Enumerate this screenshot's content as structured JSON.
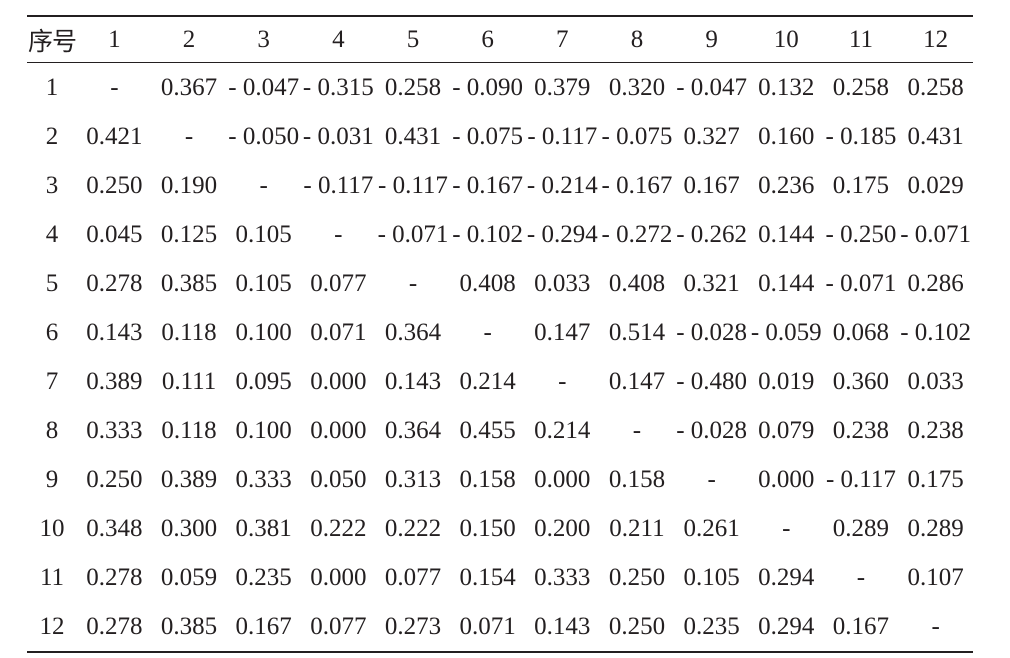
{
  "table": {
    "headers": [
      "序号",
      "1",
      "2",
      "3",
      "4",
      "5",
      "6",
      "7",
      "8",
      "9",
      "10",
      "11",
      "12"
    ],
    "rows": [
      [
        "1",
        "-",
        "0.367",
        "- 0.047",
        "- 0.315",
        "0.258",
        "- 0.090",
        "0.379",
        "0.320",
        "- 0.047",
        "0.132",
        "0.258",
        "0.258"
      ],
      [
        "2",
        "0.421",
        "-",
        "- 0.050",
        "- 0.031",
        "0.431",
        "- 0.075",
        "- 0.117",
        "- 0.075",
        "0.327",
        "0.160",
        "- 0.185",
        "0.431"
      ],
      [
        "3",
        "0.250",
        "0.190",
        "-",
        "- 0.117",
        "- 0.117",
        "- 0.167",
        "- 0.214",
        "- 0.167",
        "0.167",
        "0.236",
        "0.175",
        "0.029"
      ],
      [
        "4",
        "0.045",
        "0.125",
        "0.105",
        "-",
        "- 0.071",
        "- 0.102",
        "- 0.294",
        "- 0.272",
        "- 0.262",
        "0.144",
        "- 0.250",
        "- 0.071"
      ],
      [
        "5",
        "0.278",
        "0.385",
        "0.105",
        "0.077",
        "-",
        "0.408",
        "0.033",
        "0.408",
        "0.321",
        "0.144",
        "- 0.071",
        "0.286"
      ],
      [
        "6",
        "0.143",
        "0.118",
        "0.100",
        "0.071",
        "0.364",
        "-",
        "0.147",
        "0.514",
        "- 0.028",
        "- 0.059",
        "0.068",
        "- 0.102"
      ],
      [
        "7",
        "0.389",
        "0.111",
        "0.095",
        "0.000",
        "0.143",
        "0.214",
        "-",
        "0.147",
        "- 0.480",
        "0.019",
        "0.360",
        "0.033"
      ],
      [
        "8",
        "0.333",
        "0.118",
        "0.100",
        "0.000",
        "0.364",
        "0.455",
        "0.214",
        "-",
        "- 0.028",
        "0.079",
        "0.238",
        "0.238"
      ],
      [
        "9",
        "0.250",
        "0.389",
        "0.333",
        "0.050",
        "0.313",
        "0.158",
        "0.000",
        "0.158",
        "-",
        "0.000",
        "- 0.117",
        "0.175"
      ],
      [
        "10",
        "0.348",
        "0.300",
        "0.381",
        "0.222",
        "0.222",
        "0.150",
        "0.200",
        "0.211",
        "0.261",
        "-",
        "0.289",
        "0.289"
      ],
      [
        "11",
        "0.278",
        "0.059",
        "0.235",
        "0.000",
        "0.077",
        "0.154",
        "0.333",
        "0.250",
        "0.105",
        "0.294",
        "-",
        "0.107"
      ],
      [
        "12",
        "0.278",
        "0.385",
        "0.167",
        "0.077",
        "0.273",
        "0.071",
        "0.143",
        "0.250",
        "0.235",
        "0.294",
        "0.167",
        "-"
      ]
    ]
  },
  "colors": {
    "text": "#231f20",
    "rule": "#231f20",
    "background": "#ffffff"
  }
}
